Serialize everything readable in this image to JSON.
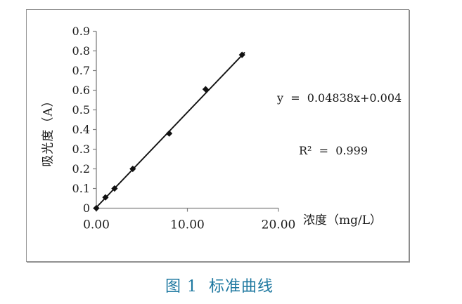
{
  "figure": {
    "caption": "图 1  标准曲线",
    "caption_color": "#1e78a0"
  },
  "chart_data": {
    "type": "scatter",
    "title": "",
    "xlabel": "浓度（mg/L）",
    "ylabel": "吸光度（A）",
    "xlim": [
      0,
      20
    ],
    "ylim": [
      0,
      0.9
    ],
    "grid": false,
    "legend": "none",
    "marker": "diamond",
    "x_ticks": [
      {
        "value": 0,
        "label": "0.00"
      },
      {
        "value": 10,
        "label": "10.00"
      },
      {
        "value": 20,
        "label": "20.00"
      }
    ],
    "y_ticks": [
      {
        "value": 0,
        "label": "0"
      },
      {
        "value": 0.1,
        "label": "0.1"
      },
      {
        "value": 0.2,
        "label": "0.2"
      },
      {
        "value": 0.3,
        "label": "0.3"
      },
      {
        "value": 0.4,
        "label": "0.4"
      },
      {
        "value": 0.5,
        "label": "0.5"
      },
      {
        "value": 0.6,
        "label": "0.6"
      },
      {
        "value": 0.7,
        "label": "0.7"
      },
      {
        "value": 0.8,
        "label": "0.8"
      },
      {
        "value": 0.9,
        "label": "0.9"
      }
    ],
    "points": [
      {
        "x": 0,
        "y": 0
      },
      {
        "x": 1,
        "y": 0.055
      },
      {
        "x": 2,
        "y": 0.1
      },
      {
        "x": 4,
        "y": 0.2
      },
      {
        "x": 8,
        "y": 0.38
      },
      {
        "x": 12,
        "y": 0.605
      },
      {
        "x": 16,
        "y": 0.78
      }
    ],
    "trendline": {
      "slope": 0.04838,
      "intercept": 0.004,
      "x_start": 0,
      "x_end": 16.3
    },
    "equation_line1": "y  =  0.04838x+0.004",
    "equation_line2": "R²  =  0.999",
    "colors": {
      "line": "#111111",
      "marker": "#111111",
      "axis": "#808080",
      "tick_label": "#1a1a1a",
      "axis_title": "#1a1a1a",
      "equation_text": "#1a1a1a"
    }
  }
}
